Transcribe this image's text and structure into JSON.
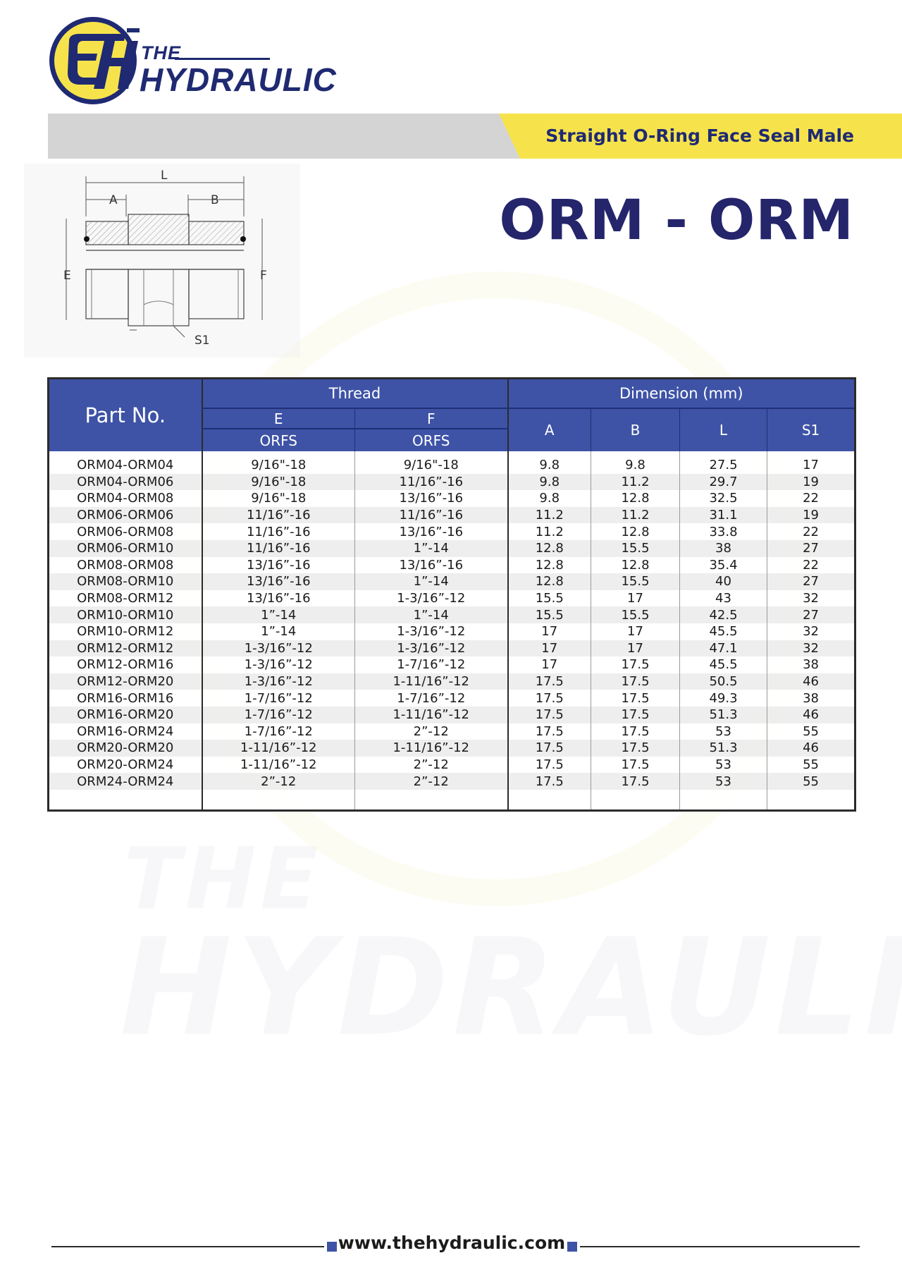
{
  "brand": {
    "logo_the": "THE",
    "logo_hydraulic": "HYDRAULIC",
    "logo_mark": "eh-monogram-logo",
    "watermark_the": "THE",
    "watermark_hydraulic": "HYDRAULIC",
    "colors": {
      "navy": "#1f2a72",
      "yellow": "#f6e34c",
      "header_blue": "#3e53a6"
    }
  },
  "banner": {
    "subtitle": "Straight O-Ring Face Seal Male"
  },
  "title": "ORM - ORM",
  "drawing": {
    "labels": {
      "L": "L",
      "A": "A",
      "B": "B",
      "E": "E",
      "F": "F",
      "S1": "S1"
    }
  },
  "table": {
    "headers": {
      "part_no": "Part No.",
      "thread": "Thread",
      "dimension": "Dimension (mm)",
      "E": "E",
      "F": "F",
      "orfs_e": "ORFS",
      "orfs_f": "ORFS",
      "A": "A",
      "B": "B",
      "L": "L",
      "S1": "S1"
    },
    "rows": [
      [
        "ORM04-ORM04",
        "9/16\"-18",
        "9/16\"-18",
        "9.8",
        "9.8",
        "27.5",
        "17"
      ],
      [
        "ORM04-ORM06",
        "9/16\"-18",
        "11/16”-16",
        "9.8",
        "11.2",
        "29.7",
        "19"
      ],
      [
        "ORM04-ORM08",
        "9/16\"-18",
        "13/16”-16",
        "9.8",
        "12.8",
        "32.5",
        "22"
      ],
      [
        "ORM06-ORM06",
        "11/16”-16",
        "11/16”-16",
        "11.2",
        "11.2",
        "31.1",
        "19"
      ],
      [
        "ORM06-ORM08",
        "11/16”-16",
        "13/16”-16",
        "11.2",
        "12.8",
        "33.8",
        "22"
      ],
      [
        "ORM06-ORM10",
        "11/16”-16",
        "1”-14",
        "12.8",
        "15.5",
        "38",
        "27"
      ],
      [
        "ORM08-ORM08",
        "13/16”-16",
        "13/16”-16",
        "12.8",
        "12.8",
        "35.4",
        "22"
      ],
      [
        "ORM08-ORM10",
        "13/16”-16",
        "1”-14",
        "12.8",
        "15.5",
        "40",
        "27"
      ],
      [
        "ORM08-ORM12",
        "13/16”-16",
        "1-3/16”-12",
        "15.5",
        "17",
        "43",
        "32"
      ],
      [
        "ORM10-ORM10",
        "1”-14",
        "1”-14",
        "15.5",
        "15.5",
        "42.5",
        "27"
      ],
      [
        "ORM10-ORM12",
        "1”-14",
        "1-3/16”-12",
        "17",
        "17",
        "45.5",
        "32"
      ],
      [
        "ORM12-ORM12",
        "1-3/16”-12",
        "1-3/16”-12",
        "17",
        "17",
        "47.1",
        "32"
      ],
      [
        "ORM12-ORM16",
        "1-3/16”-12",
        "1-7/16”-12",
        "17",
        "17.5",
        "45.5",
        "38"
      ],
      [
        "ORM12-ORM20",
        "1-3/16”-12",
        "1-11/16”-12",
        "17.5",
        "17.5",
        "50.5",
        "46"
      ],
      [
        "ORM16-ORM16",
        "1-7/16”-12",
        "1-7/16”-12",
        "17.5",
        "17.5",
        "49.3",
        "38"
      ],
      [
        "ORM16-ORM20",
        "1-7/16”-12",
        "1-11/16”-12",
        "17.5",
        "17.5",
        "51.3",
        "46"
      ],
      [
        "ORM16-ORM24",
        "1-7/16”-12",
        "2”-12",
        "17.5",
        "17.5",
        "53",
        "55"
      ],
      [
        "ORM20-ORM20",
        "1-11/16”-12",
        "1-11/16”-12",
        "17.5",
        "17.5",
        "51.3",
        "46"
      ],
      [
        "ORM20-ORM24",
        "1-11/16”-12",
        "2”-12",
        "17.5",
        "17.5",
        "53",
        "55"
      ],
      [
        "ORM24-ORM24",
        "2”-12",
        "2”-12",
        "17.5",
        "17.5",
        "53",
        "55"
      ]
    ]
  },
  "footer": {
    "url": "www.thehydraulic.com"
  }
}
